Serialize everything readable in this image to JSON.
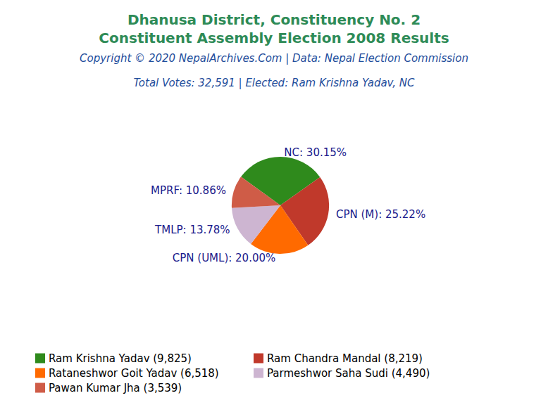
{
  "chart_data": {
    "type": "pie",
    "title": "Dhanusa District, Constituency No. 2\nConstituent Assembly Election 2008 Results",
    "subtitle": "Copyright © 2020 NepalArchives.Com | Data: Nepal Election Commission",
    "annotations": [
      "Total Votes: 32,591 | Elected: Ram Krishna Yadav, NC"
    ],
    "categories": [
      "Ram Krishna Yadav (9,825)",
      "Ram Chandra Mandal (8,219)",
      "Rataneshwor Goit Yadav (6,518)",
      "Parmeshwor Saha Sudi (4,490)",
      "Pawan Kumar Jha (3,539)"
    ],
    "values": [
      30.15,
      25.22,
      20.0,
      13.78,
      10.86
    ],
    "value_labels": [
      "NC: 30.15%",
      "CPN (M): 25.22%",
      "CPN (UML): 20.00%",
      "TMLP: 13.78%",
      "MPRF: 10.86%"
    ],
    "colors": [
      "#2f8a1c",
      "#c0392b",
      "#ff6a00",
      "#cdb5d1",
      "#cf5c47"
    ],
    "legend": "bottom",
    "data_labels": true
  }
}
